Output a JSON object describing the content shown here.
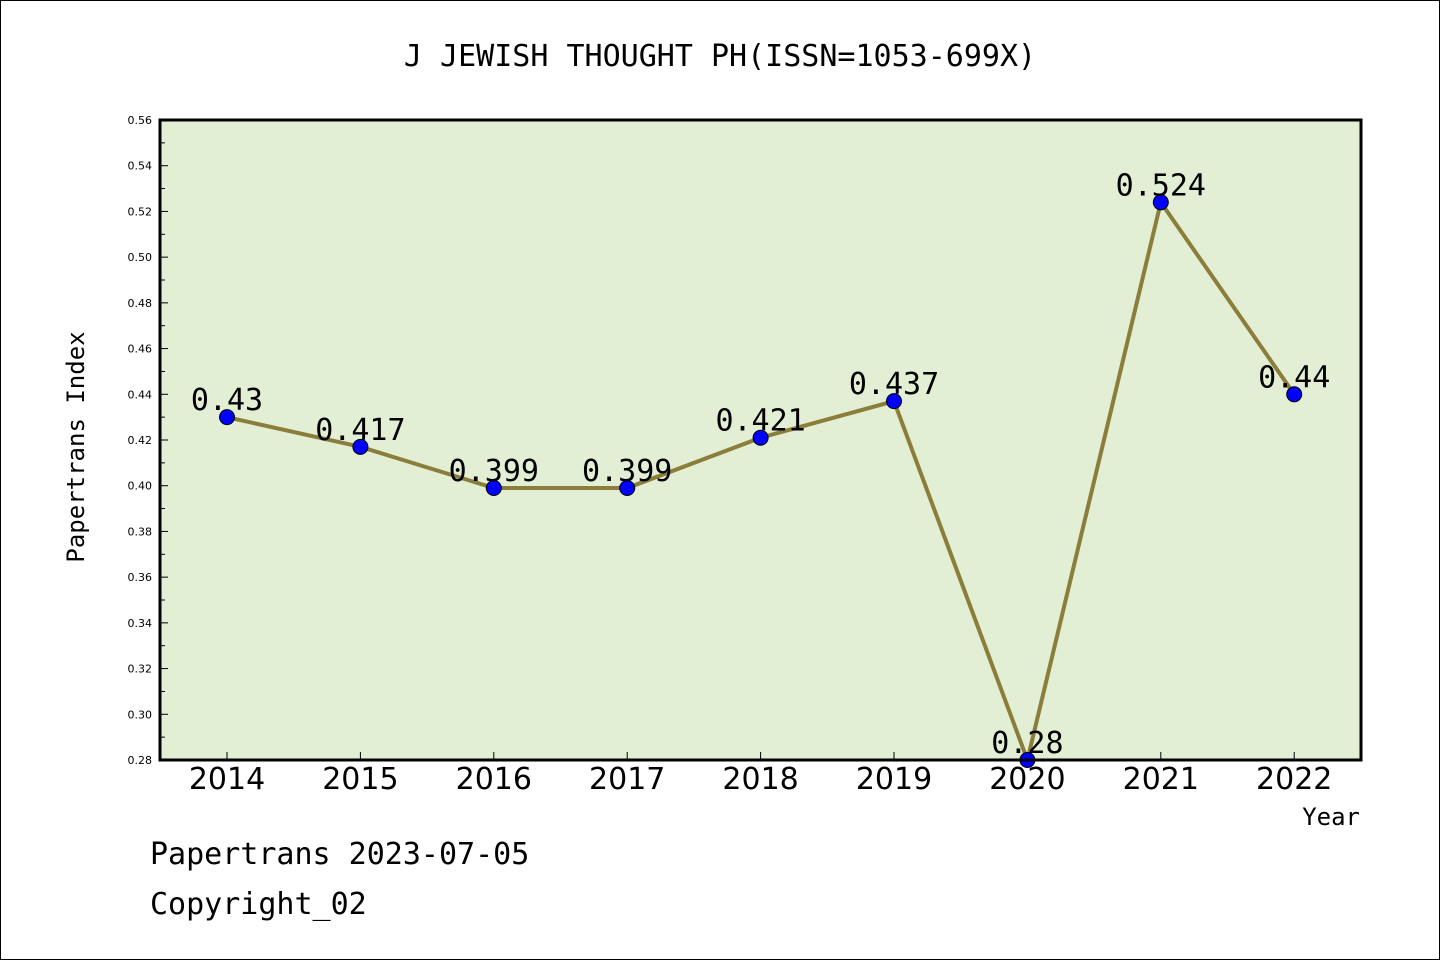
{
  "chart_data": {
    "type": "line",
    "title": "J JEWISH THOUGHT PH(ISSN=1053-699X)",
    "xlabel": "Year",
    "ylabel": "Papertrans Index",
    "categories": [
      "2014",
      "2015",
      "2016",
      "2017",
      "2018",
      "2019",
      "2020",
      "2021",
      "2022"
    ],
    "series": [
      {
        "values": [
          0.43,
          0.417,
          0.399,
          0.399,
          0.421,
          0.437,
          0.28,
          0.524,
          0.44
        ],
        "data_labels": [
          "0.43",
          "0.417",
          "0.399",
          "0.399",
          "0.421",
          "0.437",
          "0.28",
          "0.524",
          "0.44"
        ]
      }
    ],
    "ylim": [
      0.28,
      0.56
    ],
    "yticks": [
      "0.28",
      "0.30",
      "0.32",
      "0.34",
      "0.36",
      "0.38",
      "0.40",
      "0.42",
      "0.44",
      "0.46",
      "0.48",
      "0.50",
      "0.52",
      "0.54",
      "0.56"
    ],
    "grid": false,
    "legend": "none",
    "colors": {
      "plot_background": "#e2efd4",
      "line": "#8b7d3a",
      "marker": "#0000ff"
    }
  },
  "footer": {
    "line1": "Papertrans 2023-07-05",
    "line2": "Copyright_02"
  }
}
